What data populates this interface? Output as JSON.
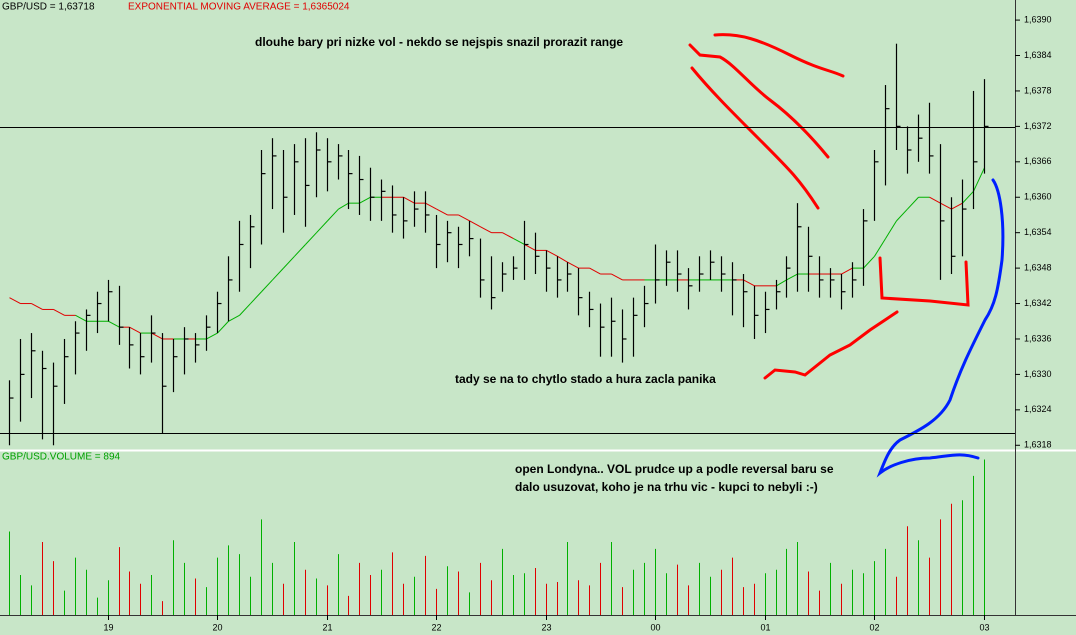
{
  "chart_data": {
    "type": "ohlc",
    "title": "GBP/USD = 1,63718",
    "subtitle": "EXPONENTIAL MOVING AVERAGE = 1,6365024",
    "volume_title": "GBP/USD.VOLUME = 894",
    "annotations": [
      "dlouhe bary pri nizke vol - nekdo se nejspis snazil prorazit range",
      "tady se na to chytlo stado a hura zacla panika",
      "open Londyna.. VOL prudce up a podle reversal baru se",
      "dalo usuzovat, koho je na trhu vic - kupci to nebyli :-)"
    ],
    "last_price": 1.63718,
    "hline": 1.632,
    "ylim": [
      1.63172,
      1.63934
    ],
    "yticks": [
      {
        "value": 1.639,
        "label": "1,6390"
      },
      {
        "value": 1.6384,
        "label": "1,6384"
      },
      {
        "value": 1.6378,
        "label": "1,6378"
      },
      {
        "value": 1.6372,
        "label": "1,6372"
      },
      {
        "value": 1.6366,
        "label": "1,6366"
      },
      {
        "value": 1.636,
        "label": "1,6360"
      },
      {
        "value": 1.6354,
        "label": "1,6354"
      },
      {
        "value": 1.6348,
        "label": "1,6348"
      },
      {
        "value": 1.6342,
        "label": "1,6342"
      },
      {
        "value": 1.6336,
        "label": "1,6336"
      },
      {
        "value": 1.633,
        "label": "1,6330"
      },
      {
        "value": 1.6324,
        "label": "1,6324"
      },
      {
        "value": 1.6318,
        "label": "1,6318"
      }
    ],
    "volume_ylim": [
      0,
      920
    ],
    "up_color": "#00b000",
    "down_color": "#e00000",
    "bar_color": "#000000",
    "categories": [
      null,
      null,
      null,
      null,
      null,
      null,
      null,
      null,
      null,
      "19",
      null,
      null,
      null,
      null,
      null,
      null,
      null,
      null,
      null,
      "20",
      null,
      null,
      null,
      null,
      null,
      null,
      null,
      null,
      null,
      "21",
      null,
      null,
      null,
      null,
      null,
      null,
      null,
      null,
      null,
      "22",
      null,
      null,
      null,
      null,
      null,
      null,
      null,
      null,
      null,
      "23",
      null,
      null,
      null,
      null,
      null,
      null,
      null,
      null,
      null,
      "00",
      null,
      null,
      null,
      null,
      null,
      null,
      null,
      null,
      null,
      "01",
      null,
      null,
      null,
      null,
      null,
      null,
      null,
      null,
      null,
      "02",
      null,
      null,
      null,
      null,
      null,
      null,
      null,
      null,
      null,
      "03"
    ],
    "high": [
      1.6329,
      1.6336,
      1.6337,
      1.6334,
      1.6332,
      1.6336,
      1.6339,
      1.6341,
      1.6344,
      1.6346,
      1.6345,
      1.6338,
      1.6337,
      1.634,
      1.6337,
      1.6336,
      1.6338,
      1.6337,
      1.634,
      1.6344,
      1.635,
      1.6356,
      1.6357,
      1.6368,
      1.637,
      1.6368,
      1.6369,
      1.637,
      1.6371,
      1.637,
      1.6369,
      1.6368,
      1.6367,
      1.6365,
      1.6363,
      1.6362,
      1.636,
      1.6361,
      1.6361,
      1.6357,
      1.6356,
      1.6355,
      1.6356,
      1.6353,
      1.635,
      1.6349,
      1.635,
      1.6356,
      1.6354,
      1.6351,
      1.635,
      1.6349,
      1.6348,
      1.6344,
      1.6342,
      1.6343,
      1.6341,
      1.6343,
      1.6345,
      1.6352,
      1.6351,
      1.6351,
      1.6348,
      1.635,
      1.6351,
      1.635,
      1.6349,
      1.6347,
      1.6345,
      1.6344,
      1.6346,
      1.635,
      1.6359,
      1.6355,
      1.635,
      1.6348,
      1.6347,
      1.6349,
      1.6358,
      1.6368,
      1.6379,
      1.6386,
      1.6372,
      1.6374,
      1.6376,
      1.6369,
      1.636,
      1.6363,
      1.6378,
      1.638
    ],
    "low": [
      1.6318,
      1.6322,
      1.6326,
      1.6319,
      1.6318,
      1.6325,
      1.633,
      1.6334,
      1.6337,
      1.6339,
      1.6335,
      1.6331,
      1.633,
      1.6332,
      1.632,
      1.6327,
      1.633,
      1.6332,
      1.6334,
      1.6337,
      1.6339,
      1.6344,
      1.6348,
      1.6352,
      1.6358,
      1.6354,
      1.6357,
      1.6355,
      1.636,
      1.6361,
      1.6363,
      1.6358,
      1.6357,
      1.6356,
      1.6356,
      1.6354,
      1.6353,
      1.6355,
      1.6354,
      1.6348,
      1.6349,
      1.6348,
      1.635,
      1.6343,
      1.6341,
      1.6344,
      1.6346,
      1.6346,
      1.6347,
      1.6344,
      1.6343,
      1.6344,
      1.634,
      1.6338,
      1.6333,
      1.6333,
      1.6332,
      1.6333,
      1.6338,
      1.6342,
      1.6345,
      1.6344,
      1.6341,
      1.6344,
      1.6346,
      1.6344,
      1.634,
      1.6338,
      1.6336,
      1.6337,
      1.6341,
      1.6343,
      1.6344,
      1.6344,
      1.6343,
      1.6343,
      1.6341,
      1.6343,
      1.6345,
      1.6356,
      1.6362,
      1.6368,
      1.6364,
      1.6366,
      1.6364,
      1.6346,
      1.6347,
      1.635,
      1.6358,
      1.6364
    ],
    "close": [
      1.6326,
      1.633,
      1.6334,
      1.6331,
      1.6328,
      1.6333,
      1.6337,
      1.634,
      1.6342,
      1.6344,
      1.6338,
      1.6335,
      1.6333,
      1.6337,
      1.6328,
      1.6333,
      1.6336,
      1.6335,
      1.6338,
      1.6342,
      1.6346,
      1.6352,
      1.6355,
      1.6364,
      1.6367,
      1.636,
      1.6366,
      1.6362,
      1.6368,
      1.6366,
      1.6367,
      1.6364,
      1.6363,
      1.636,
      1.6361,
      1.6357,
      1.6356,
      1.6358,
      1.6357,
      1.6352,
      1.6354,
      1.6352,
      1.6353,
      1.6346,
      1.6343,
      1.6347,
      1.6348,
      1.6352,
      1.635,
      1.6348,
      1.6346,
      1.6347,
      1.6343,
      1.6341,
      1.6338,
      1.6339,
      1.6336,
      1.634,
      1.6342,
      1.6346,
      1.6349,
      1.6347,
      1.6345,
      1.6347,
      1.6349,
      1.6347,
      1.6346,
      1.6344,
      1.634,
      1.6341,
      1.6344,
      1.6348,
      1.6355,
      1.635,
      1.6346,
      1.6346,
      1.6344,
      1.6346,
      1.6356,
      1.6366,
      1.6375,
      1.6372,
      1.6368,
      1.637,
      1.6367,
      1.6356,
      1.635,
      1.6358,
      1.6366,
      1.6372
    ],
    "ema": [
      1.6343,
      1.6342,
      1.6342,
      1.6341,
      1.6341,
      1.634,
      1.634,
      1.6339,
      1.6339,
      1.6339,
      1.6338,
      1.6338,
      1.6337,
      1.6337,
      1.6336,
      1.6336,
      1.6336,
      1.6336,
      1.6336,
      1.6337,
      1.6339,
      1.634,
      1.6342,
      1.6344,
      1.6346,
      1.6348,
      1.635,
      1.6352,
      1.6354,
      1.6356,
      1.6358,
      1.6359,
      1.6359,
      1.636,
      1.636,
      1.636,
      1.636,
      1.6359,
      1.6359,
      1.6358,
      1.6357,
      1.6357,
      1.6356,
      1.6355,
      1.6354,
      1.6354,
      1.6353,
      1.6352,
      1.6351,
      1.6351,
      1.635,
      1.6349,
      1.6348,
      1.6348,
      1.6347,
      1.6347,
      1.6346,
      1.6346,
      1.6346,
      1.6346,
      1.6346,
      1.6346,
      1.6346,
      1.6346,
      1.6346,
      1.6346,
      1.6346,
      1.6346,
      1.6345,
      1.6345,
      1.6345,
      1.6346,
      1.6347,
      1.6347,
      1.6347,
      1.6347,
      1.6347,
      1.6348,
      1.6348,
      1.635,
      1.6353,
      1.6356,
      1.6358,
      1.636,
      1.636,
      1.6359,
      1.6358,
      1.6359,
      1.6361,
      1.6365
    ],
    "volume": [
      480,
      230,
      170,
      420,
      310,
      140,
      330,
      260,
      100,
      200,
      390,
      250,
      180,
      230,
      80,
      430,
      300,
      210,
      160,
      330,
      400,
      350,
      220,
      550,
      300,
      180,
      420,
      260,
      210,
      170,
      350,
      110,
      300,
      230,
      260,
      360,
      180,
      220,
      340,
      150,
      280,
      250,
      130,
      300,
      200,
      380,
      230,
      240,
      270,
      180,
      190,
      420,
      200,
      170,
      300,
      420,
      160,
      260,
      300,
      380,
      240,
      290,
      170,
      300,
      220,
      260,
      330,
      160,
      180,
      240,
      260,
      380,
      420,
      250,
      140,
      300,
      180,
      260,
      240,
      310,
      380,
      220,
      510,
      430,
      330,
      550,
      640,
      660,
      800,
      894
    ]
  }
}
